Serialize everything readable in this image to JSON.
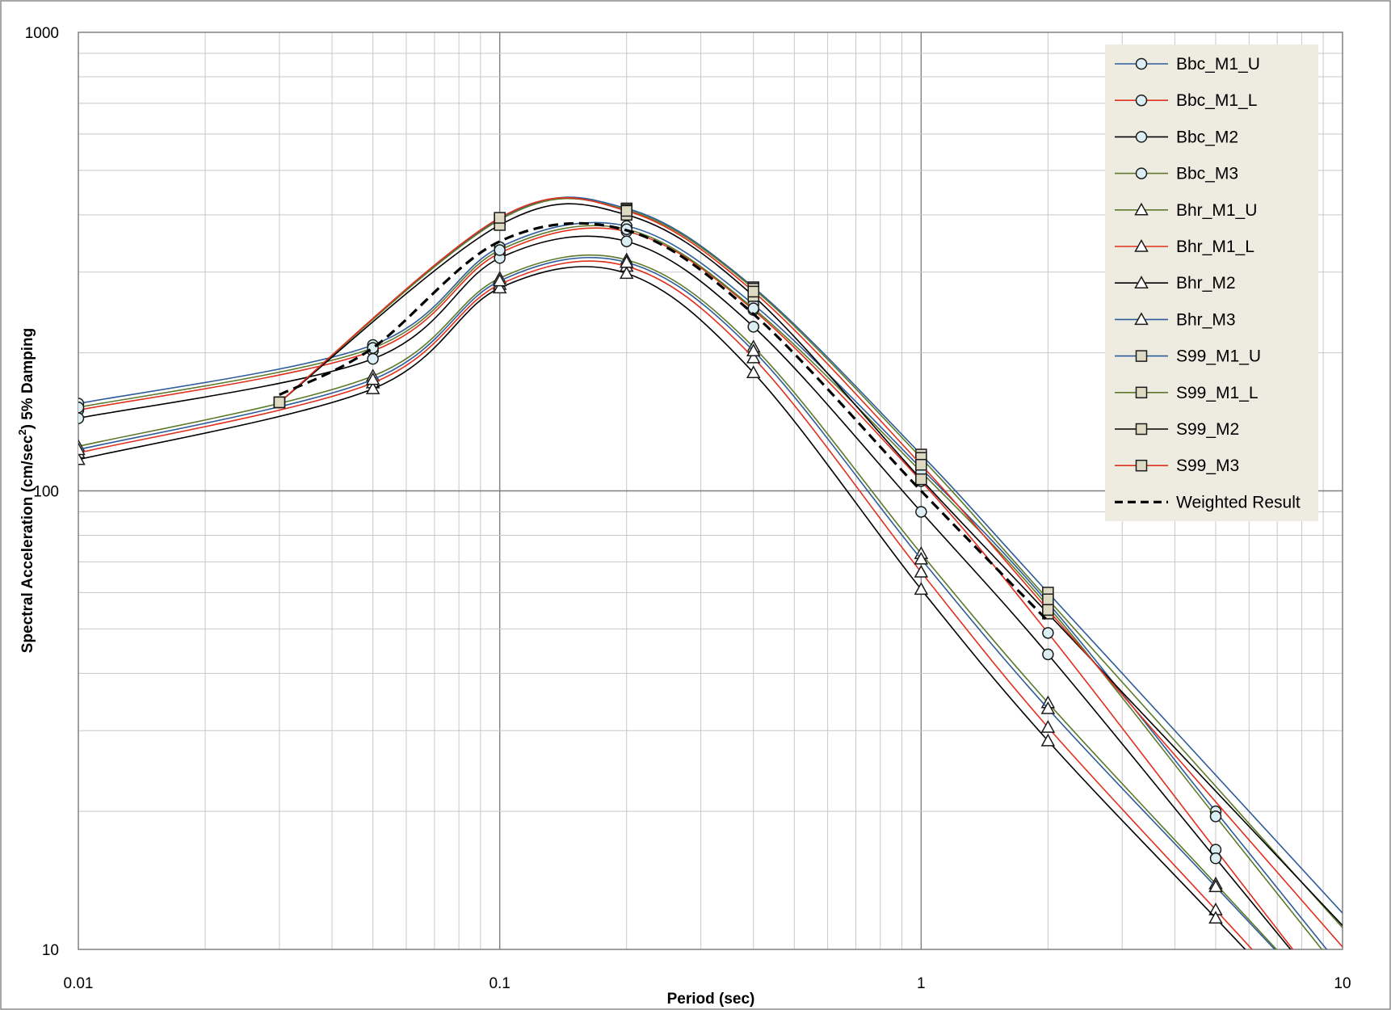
{
  "chart_data": {
    "type": "line",
    "title": "",
    "xlabel": "Period (sec)",
    "ylabel_prefix": "Spectral Acceleration (cm/sec",
    "ylabel_sup": "2",
    "ylabel_suffix": ") 5% Damping",
    "x_scale": "log",
    "y_scale": "log",
    "xlim": [
      0.01,
      10
    ],
    "ylim": [
      10,
      1000
    ],
    "x_ticks": [
      0.01,
      0.1,
      1,
      10
    ],
    "x_tick_labels": [
      "0.01",
      "0.1",
      "1",
      "10"
    ],
    "y_ticks": [
      10,
      100,
      1000
    ],
    "y_tick_labels": [
      "10",
      "100",
      "1000"
    ],
    "grid": true,
    "legend_position": "top-right",
    "series": [
      {
        "name": "Bbc_M1_U",
        "color": "#2e5c9a",
        "marker": "circle",
        "dashed": false,
        "x": [
          0.01,
          0.05,
          0.1,
          0.2,
          0.4,
          1,
          2,
          5
        ],
        "y": [
          155,
          208,
          340,
          378,
          255,
          112,
          57,
          20.0
        ]
      },
      {
        "name": "Bbc_M1_L",
        "color": "#e0301e",
        "marker": "circle",
        "dashed": false,
        "x": [
          0.01,
          0.05,
          0.1,
          0.2,
          0.4,
          1,
          2,
          5
        ],
        "y": [
          150,
          202,
          330,
          368,
          248,
          105,
          49,
          16.5
        ]
      },
      {
        "name": "Bbc_M2",
        "color": "#000000",
        "marker": "circle",
        "dashed": false,
        "x": [
          0.01,
          0.05,
          0.1,
          0.2,
          0.4,
          1,
          2,
          5
        ],
        "y": [
          144,
          194,
          322,
          350,
          228,
          90,
          44,
          15.8
        ]
      },
      {
        "name": "Bbc_M3",
        "color": "#5c7a2a",
        "marker": "circle",
        "dashed": false,
        "x": [
          0.01,
          0.05,
          0.1,
          0.2,
          0.4,
          1,
          2,
          5
        ],
        "y": [
          152,
          205,
          335,
          372,
          250,
          110,
          56,
          19.5
        ]
      },
      {
        "name": "Bhr_M1_U",
        "color": "#5c7a2a",
        "marker": "triangle",
        "dashed": false,
        "x": [
          0.01,
          0.05,
          0.1,
          0.2,
          0.4,
          1,
          2,
          5
        ],
        "y": [
          125,
          178,
          291,
          319,
          206,
          73,
          34.5,
          13.9
        ]
      },
      {
        "name": "Bhr_M1_L",
        "color": "#e0301e",
        "marker": "triangle",
        "dashed": false,
        "x": [
          0.01,
          0.05,
          0.1,
          0.2,
          0.4,
          1,
          2,
          5
        ],
        "y": [
          121,
          172,
          282,
          309,
          195,
          66.5,
          30.5,
          12.2
        ]
      },
      {
        "name": "Bhr_M2",
        "color": "#000000",
        "marker": "triangle",
        "dashed": false,
        "x": [
          0.01,
          0.05,
          0.1,
          0.2,
          0.4,
          1,
          2,
          5
        ],
        "y": [
          117,
          167,
          277,
          298,
          181,
          61,
          28.5,
          11.7
        ]
      },
      {
        "name": "Bhr_M3",
        "color": "#2e5c9a",
        "marker": "triangle",
        "dashed": false,
        "x": [
          0.01,
          0.05,
          0.1,
          0.2,
          0.4,
          1,
          2,
          5
        ],
        "y": [
          123,
          175,
          287,
          315,
          202,
          71,
          33.5,
          13.7
        ]
      },
      {
        "name": "S99_M1_U",
        "color": "#2e5c9a",
        "marker": "square",
        "dashed": false,
        "x": [
          0.03,
          0.1,
          0.2,
          0.4,
          1,
          2
        ],
        "y": [
          156,
          392,
          413,
          278,
          120,
          60
        ]
      },
      {
        "name": "S99_M1_L",
        "color": "#5c7a2a",
        "marker": "square",
        "dashed": false,
        "x": [
          0.03,
          0.1,
          0.2,
          0.4,
          1,
          2
        ],
        "y": [
          156,
          390,
          410,
          276,
          118,
          58
        ]
      },
      {
        "name": "S99_M2",
        "color": "#000000",
        "marker": "square",
        "dashed": false,
        "x": [
          0.03,
          0.1,
          0.2,
          0.4,
          1,
          2
        ],
        "y": [
          156,
          380,
          400,
          266,
          106,
          54
        ]
      },
      {
        "name": "S99_M3",
        "color": "#e0301e",
        "marker": "square",
        "dashed": false,
        "x": [
          0.03,
          0.1,
          0.2,
          0.4,
          1,
          2
        ],
        "y": [
          156,
          394,
          408,
          272,
          114,
          55
        ]
      },
      {
        "name": "Weighted Result",
        "color": "#000000",
        "marker": "none",
        "dashed": true,
        "x": [
          0.03,
          0.05,
          0.1,
          0.2,
          0.4,
          1,
          2
        ],
        "y": [
          162,
          205,
          350,
          370,
          243,
          100,
          52
        ]
      }
    ]
  }
}
